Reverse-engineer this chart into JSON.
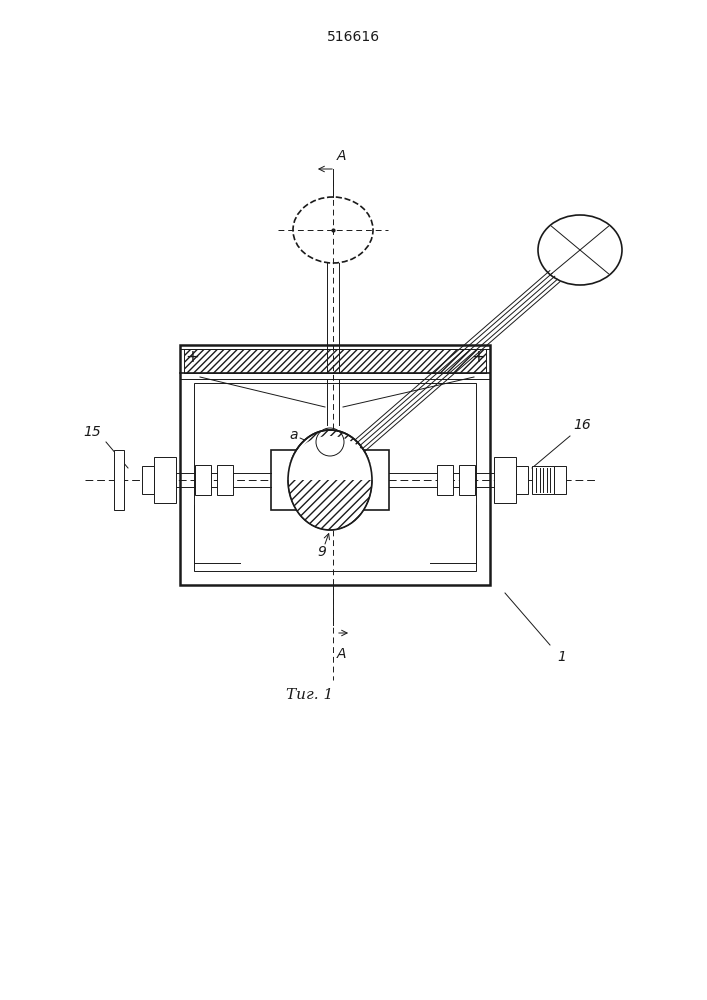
{
  "title": "516616",
  "fig_label": "Τиг. 1",
  "label_1": "1",
  "label_a": "a",
  "label_g": "9",
  "label_15": "15",
  "label_16": "16",
  "label_A_top": "A",
  "label_A_bot": "A",
  "bg_color": "#ffffff",
  "line_color": "#1a1a1a"
}
